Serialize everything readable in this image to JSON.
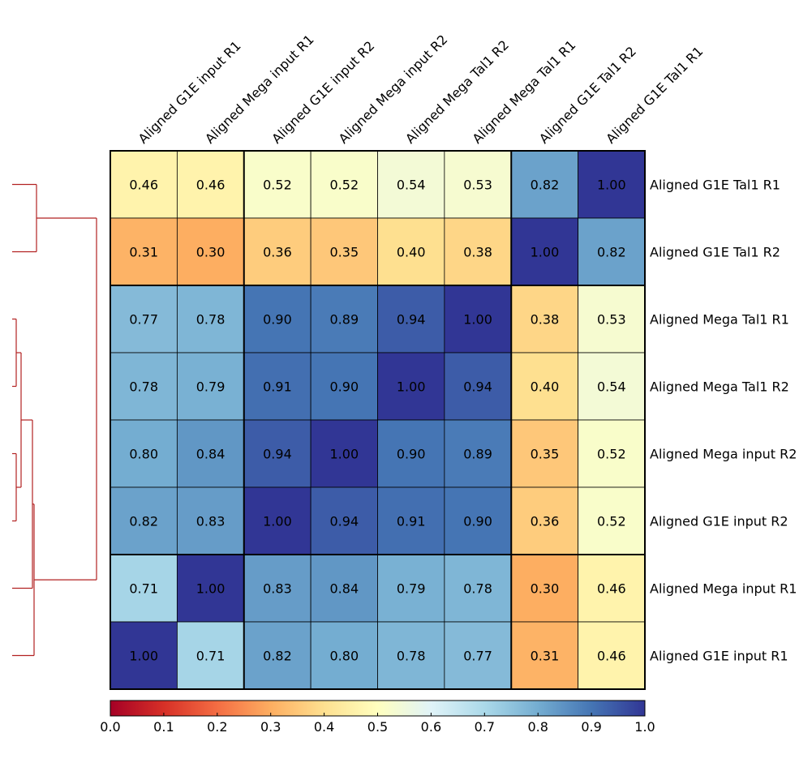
{
  "chart_data": {
    "type": "heatmap",
    "title": "",
    "column_labels": [
      "Aligned G1E input R1",
      "Aligned Mega input R1",
      "Aligned G1E input R2",
      "Aligned Mega input R2",
      "Aligned Mega Tal1 R2",
      "Aligned Mega Tal1 R1",
      "Aligned G1E Tal1 R2",
      "Aligned G1E Tal1 R1"
    ],
    "row_labels": [
      "Aligned G1E Tal1 R1",
      "Aligned G1E Tal1 R2",
      "Aligned Mega Tal1 R1",
      "Aligned Mega Tal1 R2",
      "Aligned Mega input R2",
      "Aligned G1E input R2",
      "Aligned Mega input R1",
      "Aligned G1E input R1"
    ],
    "values": [
      [
        0.46,
        0.46,
        0.52,
        0.52,
        0.54,
        0.53,
        0.82,
        1.0
      ],
      [
        0.31,
        0.3,
        0.36,
        0.35,
        0.4,
        0.38,
        1.0,
        0.82
      ],
      [
        0.77,
        0.78,
        0.9,
        0.89,
        0.94,
        1.0,
        0.38,
        0.53
      ],
      [
        0.78,
        0.79,
        0.91,
        0.9,
        1.0,
        0.94,
        0.4,
        0.54
      ],
      [
        0.8,
        0.84,
        0.94,
        1.0,
        0.9,
        0.89,
        0.35,
        0.52
      ],
      [
        0.82,
        0.83,
        1.0,
        0.94,
        0.91,
        0.9,
        0.36,
        0.52
      ],
      [
        0.71,
        1.0,
        0.83,
        0.84,
        0.79,
        0.78,
        0.3,
        0.46
      ],
      [
        1.0,
        0.71,
        0.82,
        0.8,
        0.78,
        0.77,
        0.31,
        0.46
      ]
    ],
    "cell_labels": [
      [
        "0.46",
        "0.46",
        "0.52",
        "0.52",
        "0.54",
        "0.53",
        "0.82",
        "1.00"
      ],
      [
        "0.31",
        "0.30",
        "0.36",
        "0.35",
        "0.40",
        "0.38",
        "1.00",
        "0.82"
      ],
      [
        "0.77",
        "0.78",
        "0.90",
        "0.89",
        "0.94",
        "1.00",
        "0.38",
        "0.53"
      ],
      [
        "0.78",
        "0.79",
        "0.91",
        "0.90",
        "1.00",
        "0.94",
        "0.40",
        "0.54"
      ],
      [
        "0.80",
        "0.84",
        "0.94",
        "1.00",
        "0.90",
        "0.89",
        "0.35",
        "0.52"
      ],
      [
        "0.82",
        "0.83",
        "1.00",
        "0.94",
        "0.91",
        "0.90",
        "0.36",
        "0.52"
      ],
      [
        "0.71",
        "1.00",
        "0.83",
        "0.84",
        "0.79",
        "0.78",
        "0.30",
        "0.46"
      ],
      [
        "1.00",
        "0.71",
        "0.82",
        "0.80",
        "0.78",
        "0.77",
        "0.31",
        "0.46"
      ]
    ],
    "colorbar": {
      "range": [
        0.0,
        1.0
      ],
      "ticks": [
        "0.0",
        "0.1",
        "0.2",
        "0.3",
        "0.4",
        "0.5",
        "0.6",
        "0.7",
        "0.8",
        "0.9",
        "1.0"
      ],
      "placement": "bottom",
      "colormap": [
        "#a50026",
        "#d73027",
        "#f46d43",
        "#fdae61",
        "#fee090",
        "#ffffbf",
        "#e0f3f8",
        "#abd9e9",
        "#74add1",
        "#4575b4",
        "#313695"
      ]
    },
    "cluster_boundaries": [
      2,
      6
    ],
    "dendrogram": {
      "placement": "left",
      "color": "#b22222",
      "merges": [
        [
          "Aligned G1E Tal1 R1",
          "Aligned G1E Tal1 R2",
          0.18
        ],
        [
          "Aligned Mega Tal1 R1",
          "Aligned Mega Tal1 R2",
          0.06
        ],
        [
          "Aligned Mega input R2",
          "Aligned G1E input R2",
          0.06
        ],
        [
          "Mega Tal1 pair",
          "input R2 pair",
          0.1
        ],
        [
          "Tal1/input R2 group",
          "Aligned Mega input R1",
          0.17
        ],
        [
          "Aligned G1E input R1",
          "input group",
          0.27
        ],
        [
          "G1E Tal1 pair",
          "remaining",
          1.0
        ]
      ]
    }
  }
}
